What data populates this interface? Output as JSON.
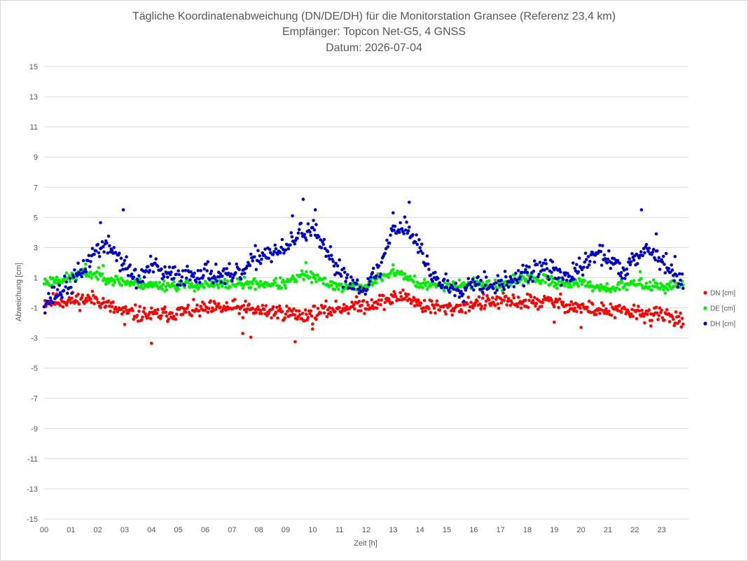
{
  "chart_data": {
    "type": "scatter",
    "title_lines": [
      "Tägliche Koordinatenabweichung (DN/DE/DH) für die Monitorstation Gransee (Referenz 23,4 km)",
      "Empfänger: Topcon Net-G5, 4 GNSS",
      "Datum: 2026-07-04"
    ],
    "xlabel": "Zeit [h]",
    "ylabel": "Abweichung [cm]",
    "xlim": [
      0,
      24
    ],
    "ylim": [
      -15,
      15
    ],
    "x_ticks": [
      0,
      1,
      2,
      3,
      4,
      5,
      6,
      7,
      8,
      9,
      10,
      11,
      12,
      13,
      14,
      15,
      16,
      17,
      18,
      19,
      20,
      21,
      22,
      23
    ],
    "x_tick_labels": [
      "00",
      "01",
      "02",
      "03",
      "04",
      "05",
      "06",
      "07",
      "08",
      "09",
      "10",
      "11",
      "12",
      "13",
      "14",
      "15",
      "16",
      "17",
      "18",
      "19",
      "20",
      "21",
      "22",
      "23"
    ],
    "y_ticks": [
      15,
      13,
      11,
      9,
      7,
      5,
      3,
      1,
      -1,
      -3,
      -5,
      -7,
      -9,
      -11,
      -13,
      -15
    ],
    "y_tick_labels": [
      "15",
      "13",
      "11",
      "9",
      "7",
      "5",
      "3",
      "1",
      "-1",
      "-3",
      "-5",
      "-7",
      "-9",
      "-11",
      "-13",
      "-15"
    ],
    "grid": "horizontal",
    "legend_position": "right",
    "sample_interval_minutes": 2,
    "series": [
      {
        "name": "DN [cm]",
        "color": "#ff0000",
        "baseline": [
          [
            0,
            -0.6
          ],
          [
            1,
            -0.5
          ],
          [
            2,
            -0.4
          ],
          [
            2.5,
            -1.0
          ],
          [
            3,
            -1.3
          ],
          [
            4,
            -1.5
          ],
          [
            5,
            -1.3
          ],
          [
            6,
            -1.1
          ],
          [
            7,
            -1.0
          ],
          [
            8,
            -1.2
          ],
          [
            9,
            -1.3
          ],
          [
            9.5,
            -1.5
          ],
          [
            10,
            -1.4
          ],
          [
            11,
            -1.0
          ],
          [
            12,
            -0.8
          ],
          [
            13,
            -0.4
          ],
          [
            13.5,
            -0.2
          ],
          [
            14,
            -0.8
          ],
          [
            15,
            -1.1
          ],
          [
            16,
            -0.7
          ],
          [
            17,
            -0.6
          ],
          [
            18,
            -0.6
          ],
          [
            19,
            -0.6
          ],
          [
            20,
            -1.0
          ],
          [
            21,
            -1.2
          ],
          [
            22,
            -1.3
          ],
          [
            23,
            -1.5
          ],
          [
            23.8,
            -1.7
          ]
        ],
        "noise": 0.45,
        "seed": 11,
        "outliers": [
          [
            3.0,
            -2.1
          ],
          [
            4.0,
            -3.35
          ],
          [
            7.4,
            -2.7
          ],
          [
            7.7,
            -2.95
          ],
          [
            9.35,
            -3.25
          ],
          [
            10.0,
            -2.4
          ],
          [
            19.0,
            -1.95
          ],
          [
            20.0,
            -2.3
          ],
          [
            22.6,
            -2.2
          ]
        ]
      },
      {
        "name": "DE [cm]",
        "color": "#00ee00",
        "baseline": [
          [
            0,
            0.7
          ],
          [
            1,
            1.0
          ],
          [
            1.5,
            1.3
          ],
          [
            2,
            1.2
          ],
          [
            2.5,
            0.9
          ],
          [
            3,
            0.7
          ],
          [
            4,
            0.5
          ],
          [
            5,
            0.5
          ],
          [
            6,
            0.5
          ],
          [
            7,
            0.6
          ],
          [
            8,
            0.6
          ],
          [
            9,
            0.6
          ],
          [
            9.7,
            1.2
          ],
          [
            10,
            1.0
          ],
          [
            11,
            0.4
          ],
          [
            12,
            0.4
          ],
          [
            12.5,
            1.0
          ],
          [
            13,
            1.4
          ],
          [
            13.5,
            1.1
          ],
          [
            14,
            0.5
          ],
          [
            15,
            0.5
          ],
          [
            16,
            0.6
          ],
          [
            17,
            0.5
          ],
          [
            18,
            1.0
          ],
          [
            19,
            0.7
          ],
          [
            20,
            0.6
          ],
          [
            21,
            0.3
          ],
          [
            22,
            0.6
          ],
          [
            23,
            0.4
          ],
          [
            23.8,
            0.6
          ]
        ],
        "noise": 0.3,
        "seed": 23,
        "outliers": [
          [
            1.55,
            1.9
          ],
          [
            2.2,
            1.8
          ],
          [
            9.75,
            2.0
          ],
          [
            13.0,
            1.85
          ],
          [
            18.0,
            1.7
          ],
          [
            22.2,
            1.4
          ]
        ]
      },
      {
        "name": "DH [cm]",
        "color": "#0000cc",
        "baseline": [
          [
            0,
            -0.6
          ],
          [
            0.5,
            0.0
          ],
          [
            1,
            0.6
          ],
          [
            1.5,
            1.7
          ],
          [
            2,
            3.0
          ],
          [
            2.5,
            3.0
          ],
          [
            3,
            1.8
          ],
          [
            3.5,
            0.8
          ],
          [
            4,
            1.8
          ],
          [
            4.5,
            1.2
          ],
          [
            5,
            1.1
          ],
          [
            6,
            1.4
          ],
          [
            7,
            1.0
          ],
          [
            7.5,
            1.5
          ],
          [
            8,
            2.5
          ],
          [
            8.5,
            2.7
          ],
          [
            9,
            2.8
          ],
          [
            9.5,
            4.0
          ],
          [
            10,
            4.2
          ],
          [
            10.5,
            2.6
          ],
          [
            11,
            1.5
          ],
          [
            11.5,
            0.6
          ],
          [
            12,
            0.4
          ],
          [
            12.5,
            1.6
          ],
          [
            13,
            4.3
          ],
          [
            13.5,
            4.4
          ],
          [
            14,
            2.9
          ],
          [
            14.5,
            1.0
          ],
          [
            15,
            0.5
          ],
          [
            15.5,
            0.2
          ],
          [
            16,
            0.8
          ],
          [
            17,
            0.5
          ],
          [
            17.5,
            0.9
          ],
          [
            18,
            1.2
          ],
          [
            18.5,
            1.7
          ],
          [
            19,
            1.4
          ],
          [
            19.5,
            1.0
          ],
          [
            20,
            1.6
          ],
          [
            20.5,
            2.6
          ],
          [
            21,
            2.4
          ],
          [
            21.5,
            1.3
          ],
          [
            22,
            2.5
          ],
          [
            22.5,
            2.9
          ],
          [
            23,
            2.2
          ],
          [
            23.8,
            0.4
          ]
        ],
        "noise": 0.6,
        "seed": 37,
        "outliers": [
          [
            2.1,
            4.65
          ],
          [
            2.95,
            5.5
          ],
          [
            9.25,
            5.1
          ],
          [
            9.65,
            6.2
          ],
          [
            10.1,
            5.5
          ],
          [
            13.0,
            5.3
          ],
          [
            13.6,
            6.0
          ],
          [
            22.25,
            5.5
          ],
          [
            22.8,
            3.9
          ],
          [
            23.5,
            2.4
          ]
        ]
      }
    ]
  },
  "legend": [
    {
      "label": "DN [cm]",
      "color": "#ff0000"
    },
    {
      "label": "DE [cm]",
      "color": "#00ee00"
    },
    {
      "label": "DH [cm]",
      "color": "#0000cc"
    }
  ]
}
